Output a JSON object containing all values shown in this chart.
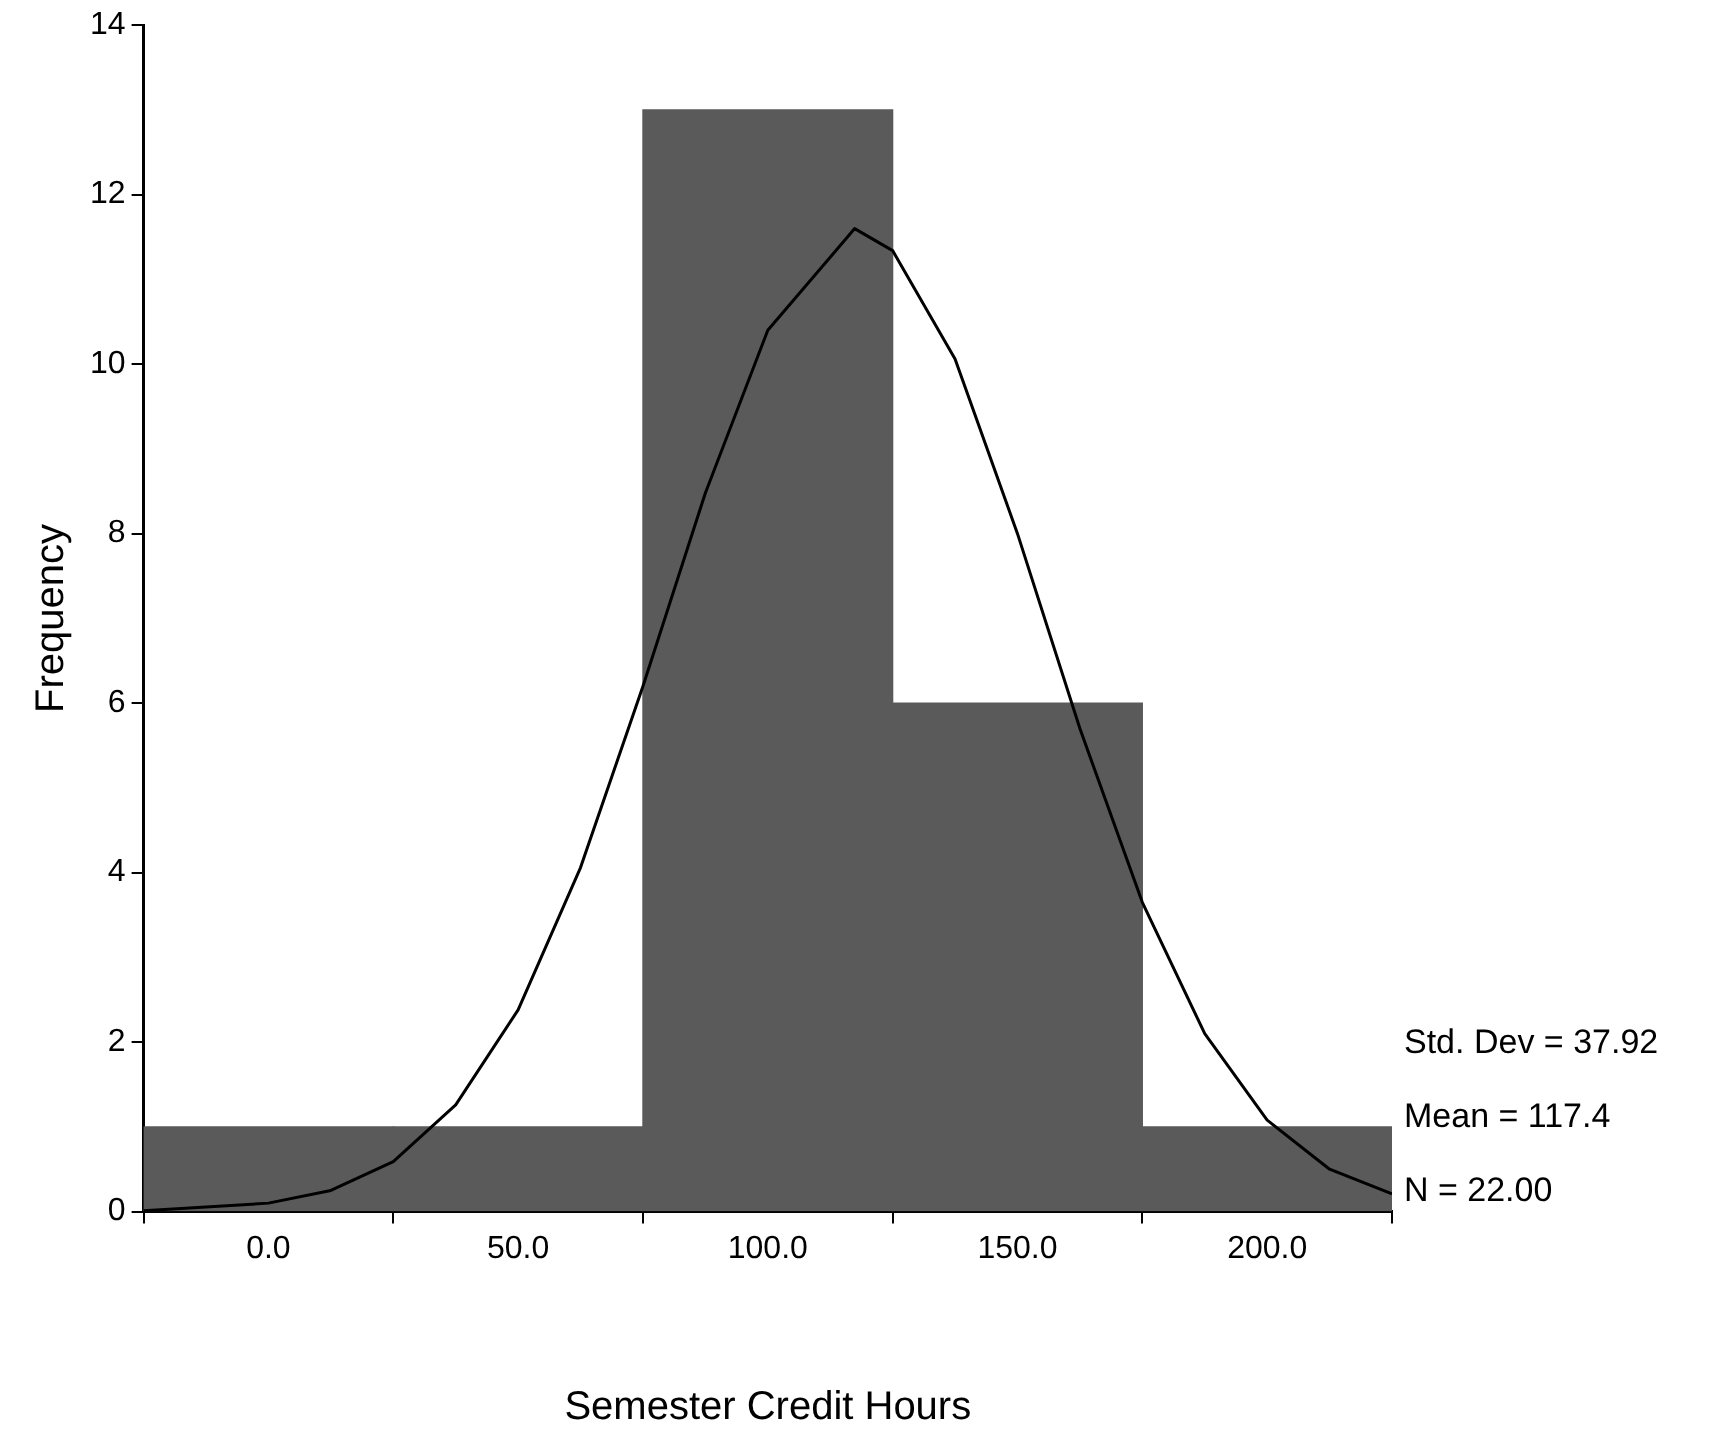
{
  "chart_data": {
    "type": "histogram",
    "xlabel": "Semester Credit Hours",
    "ylabel": "Frequency",
    "bins": [
      -25,
      25,
      75,
      125,
      175,
      225
    ],
    "values": [
      1,
      1,
      13,
      6,
      1
    ],
    "color": "#5a5a5a",
    "series": [
      {
        "type": "line",
        "color": "#000000",
        "x": [
          -25,
          0,
          12.5,
          25,
          37.5,
          50,
          62.5,
          75,
          87.5,
          100,
          117.4,
          125,
          137.5,
          150,
          162.5,
          175,
          187.5,
          200,
          212.5,
          225
        ],
        "values": [
          0.01,
          0.1,
          0.25,
          0.59,
          1.26,
          2.38,
          4.06,
          6.2,
          8.48,
          10.4,
          11.6,
          11.34,
          10.06,
          8.0,
          5.7,
          3.65,
          2.1,
          1.08,
          0.5,
          0.21
        ]
      }
    ],
    "xlim": [
      -25,
      225
    ],
    "xticks": [
      {
        "value": 0,
        "label": "0.0"
      },
      {
        "value": 50,
        "label": "50.0"
      },
      {
        "value": 100,
        "label": "100.0"
      },
      {
        "value": 150,
        "label": "150.0"
      },
      {
        "value": 200,
        "label": "200.0"
      }
    ],
    "ylim": [
      0,
      14
    ],
    "yticks": [
      0,
      2,
      4,
      6,
      8,
      10,
      12,
      14
    ],
    "grid": false,
    "legend": false,
    "marker": "none",
    "line_style": "solid",
    "annotations": [
      "Std. Dev = 37.92",
      "Mean = 117.4",
      "N = 22.00"
    ]
  }
}
